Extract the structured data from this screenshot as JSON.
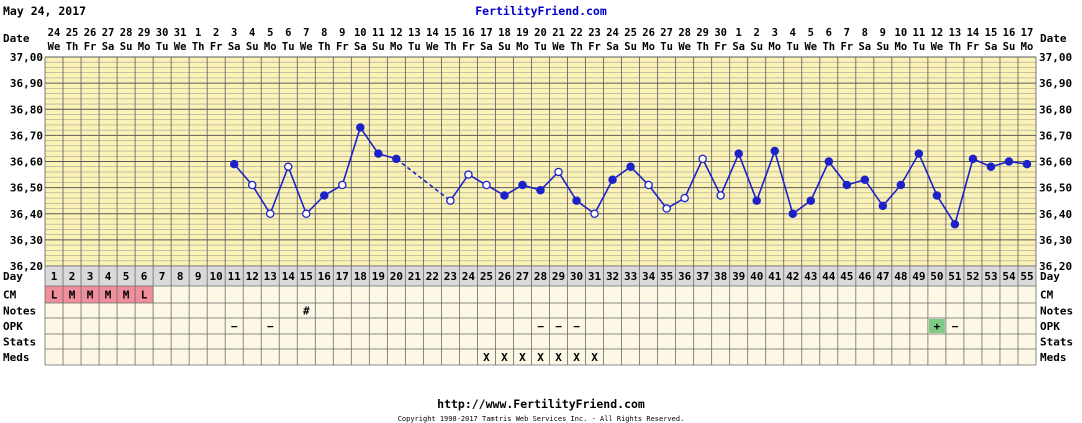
{
  "header": {
    "date": "May 24, 2017",
    "site": "FertilityFriend.com"
  },
  "footer": {
    "url": "http://www.FertilityFriend.com",
    "copyright": "Copyright 1998-2017 Tamtris Web Services Inc. - All Rights Reserved."
  },
  "labels": {
    "date": "Date",
    "day": "Day",
    "cm": "CM",
    "notes": "Notes",
    "opk": "OPK",
    "stats": "Stats",
    "meds": "Meds"
  },
  "colors": {
    "plot_bg": "#fbf2b8",
    "table_bg": "#fdf8e6",
    "day_row_bg": "#dadada",
    "line": "#1c22c8",
    "cm_bg": "#ef8f9b",
    "opk_positive_bg": "#7ecb84",
    "header_blue": "#0000cc"
  },
  "chart_data": {
    "type": "line",
    "title": "",
    "xlabel": "Day",
    "ylabel": "",
    "ylim": [
      36.2,
      37.0
    ],
    "yticks": [
      "36,20",
      "36,30",
      "36,40",
      "36,50",
      "36,60",
      "36,70",
      "36,80",
      "36,90",
      "37,00"
    ],
    "grid": true,
    "days": [
      1,
      2,
      3,
      4,
      5,
      6,
      7,
      8,
      9,
      10,
      11,
      12,
      13,
      14,
      15,
      16,
      17,
      18,
      19,
      20,
      21,
      22,
      23,
      24,
      25,
      26,
      27,
      28,
      29,
      30,
      31,
      32,
      33,
      34,
      35,
      36,
      37,
      38,
      39,
      40,
      41,
      42,
      43,
      44,
      45,
      46,
      47,
      48,
      49,
      50,
      51,
      52,
      53,
      54,
      55
    ],
    "dates": [
      "24",
      "25",
      "26",
      "27",
      "28",
      "29",
      "30",
      "31",
      "1",
      "2",
      "3",
      "4",
      "5",
      "6",
      "7",
      "8",
      "9",
      "10",
      "11",
      "12",
      "13",
      "14",
      "15",
      "16",
      "17",
      "18",
      "19",
      "20",
      "21",
      "22",
      "23",
      "24",
      "25",
      "26",
      "27",
      "28",
      "29",
      "30",
      "1",
      "2",
      "3",
      "4",
      "5",
      "6",
      "7",
      "8",
      "9",
      "10",
      "11",
      "12",
      "13",
      "14",
      "15",
      "16",
      "17"
    ],
    "weekdays": [
      "We",
      "Th",
      "Fr",
      "Sa",
      "Su",
      "Mo",
      "Tu",
      "We",
      "Th",
      "Fr",
      "Sa",
      "Su",
      "Mo",
      "Tu",
      "We",
      "Th",
      "Fr",
      "Sa",
      "Su",
      "Mo",
      "Tu",
      "We",
      "Th",
      "Fr",
      "Sa",
      "Su",
      "Mo",
      "Tu",
      "We",
      "Th",
      "Fr",
      "Sa",
      "Su",
      "Mo",
      "Tu",
      "We",
      "Th",
      "Fr",
      "Sa",
      "Su",
      "Mo",
      "Tu",
      "We",
      "Th",
      "Fr",
      "Sa",
      "Su",
      "Mo",
      "Tu",
      "We",
      "Th",
      "Fr",
      "Sa",
      "Su",
      "Mo"
    ],
    "temperatures": [
      {
        "day": 11,
        "temp": 36.59,
        "filled": true
      },
      {
        "day": 12,
        "temp": 36.51,
        "filled": false
      },
      {
        "day": 13,
        "temp": 36.4,
        "filled": false
      },
      {
        "day": 14,
        "temp": 36.58,
        "filled": false
      },
      {
        "day": 15,
        "temp": 36.4,
        "filled": false
      },
      {
        "day": 16,
        "temp": 36.47,
        "filled": true
      },
      {
        "day": 17,
        "temp": 36.51,
        "filled": false
      },
      {
        "day": 18,
        "temp": 36.73,
        "filled": true
      },
      {
        "day": 19,
        "temp": 36.63,
        "filled": true
      },
      {
        "day": 20,
        "temp": 36.61,
        "filled": true
      },
      {
        "day": 23,
        "temp": 36.45,
        "filled": false
      },
      {
        "day": 24,
        "temp": 36.55,
        "filled": false
      },
      {
        "day": 25,
        "temp": 36.51,
        "filled": false
      },
      {
        "day": 26,
        "temp": 36.47,
        "filled": true
      },
      {
        "day": 27,
        "temp": 36.51,
        "filled": true
      },
      {
        "day": 28,
        "temp": 36.49,
        "filled": true
      },
      {
        "day": 29,
        "temp": 36.56,
        "filled": false
      },
      {
        "day": 30,
        "temp": 36.45,
        "filled": true
      },
      {
        "day": 31,
        "temp": 36.4,
        "filled": false
      },
      {
        "day": 32,
        "temp": 36.53,
        "filled": true
      },
      {
        "day": 33,
        "temp": 36.58,
        "filled": true
      },
      {
        "day": 34,
        "temp": 36.51,
        "filled": false
      },
      {
        "day": 35,
        "temp": 36.42,
        "filled": false
      },
      {
        "day": 36,
        "temp": 36.46,
        "filled": false
      },
      {
        "day": 37,
        "temp": 36.61,
        "filled": false
      },
      {
        "day": 38,
        "temp": 36.47,
        "filled": false
      },
      {
        "day": 39,
        "temp": 36.63,
        "filled": true
      },
      {
        "day": 40,
        "temp": 36.45,
        "filled": true
      },
      {
        "day": 41,
        "temp": 36.64,
        "filled": true
      },
      {
        "day": 42,
        "temp": 36.4,
        "filled": true
      },
      {
        "day": 43,
        "temp": 36.45,
        "filled": true
      },
      {
        "day": 44,
        "temp": 36.6,
        "filled": true
      },
      {
        "day": 45,
        "temp": 36.51,
        "filled": true
      },
      {
        "day": 46,
        "temp": 36.53,
        "filled": true
      },
      {
        "day": 47,
        "temp": 36.43,
        "filled": true
      },
      {
        "day": 48,
        "temp": 36.51,
        "filled": true
      },
      {
        "day": 49,
        "temp": 36.63,
        "filled": true
      },
      {
        "day": 50,
        "temp": 36.47,
        "filled": true
      },
      {
        "day": 51,
        "temp": 36.36,
        "filled": true
      },
      {
        "day": 52,
        "temp": 36.61,
        "filled": true
      },
      {
        "day": 53,
        "temp": 36.58,
        "filled": true
      },
      {
        "day": 54,
        "temp": 36.6,
        "filled": true
      },
      {
        "day": 55,
        "temp": 36.59,
        "filled": true
      }
    ],
    "dashed_segments": [
      [
        20,
        23
      ]
    ],
    "cm": [
      {
        "day": 1,
        "value": "L"
      },
      {
        "day": 2,
        "value": "M"
      },
      {
        "day": 3,
        "value": "M"
      },
      {
        "day": 4,
        "value": "M"
      },
      {
        "day": 5,
        "value": "M"
      },
      {
        "day": 6,
        "value": "L"
      }
    ],
    "notes": [
      {
        "day": 15,
        "value": "#"
      }
    ],
    "opk": [
      {
        "day": 11,
        "value": "−",
        "positive": false
      },
      {
        "day": 13,
        "value": "−",
        "positive": false
      },
      {
        "day": 28,
        "value": "−",
        "positive": false
      },
      {
        "day": 29,
        "value": "−",
        "positive": false
      },
      {
        "day": 30,
        "value": "−",
        "positive": false
      },
      {
        "day": 50,
        "value": "+",
        "positive": true
      },
      {
        "day": 51,
        "value": "−",
        "positive": false
      }
    ],
    "stats": [],
    "meds": [
      {
        "day": 25,
        "value": "X"
      },
      {
        "day": 26,
        "value": "X"
      },
      {
        "day": 27,
        "value": "X"
      },
      {
        "day": 28,
        "value": "X"
      },
      {
        "day": 29,
        "value": "X"
      },
      {
        "day": 30,
        "value": "X"
      },
      {
        "day": 31,
        "value": "X"
      }
    ]
  }
}
